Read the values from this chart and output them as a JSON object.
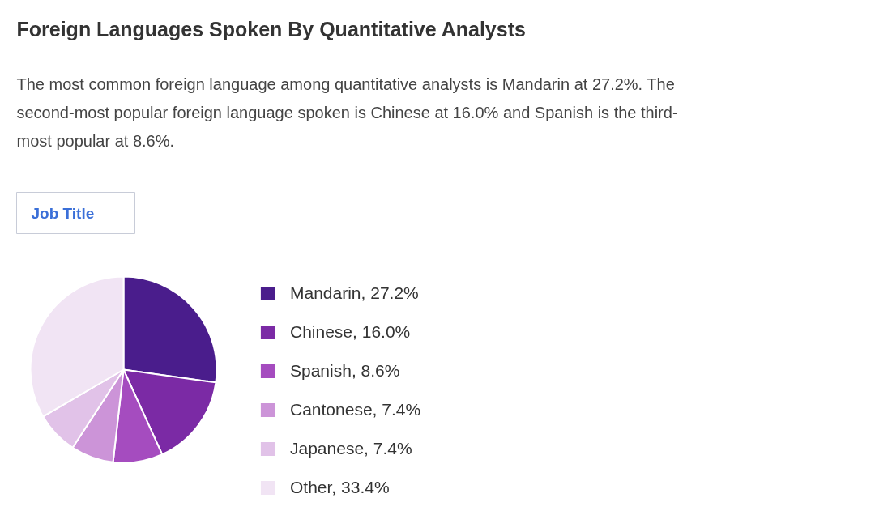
{
  "chart_data": {
    "type": "pie",
    "title": "Foreign Languages Spoken By Quantitative Analysts",
    "subtitle": "The most common foreign language among quantitative analysts is Mandarin at 27.2%. The second-most popular foreign language spoken is Chinese at 16.0% and Spanish is the third-most popular at 8.6%.",
    "annotations": [
      "Job Title"
    ],
    "categories": [
      "Mandarin, 27.2%",
      "Chinese, 16.0%",
      "Spanish, 8.6%",
      "Cantonese, 7.4%",
      "Japanese, 7.4%",
      "Other, 33.4%"
    ],
    "values": [
      27.2,
      16.0,
      8.6,
      7.4,
      7.4,
      33.4
    ],
    "colors": [
      "#4a1d8c",
      "#7b2aa5",
      "#a54cbf",
      "#cc94d8",
      "#e1c2e8",
      "#f1e4f4"
    ],
    "legend": "right"
  }
}
